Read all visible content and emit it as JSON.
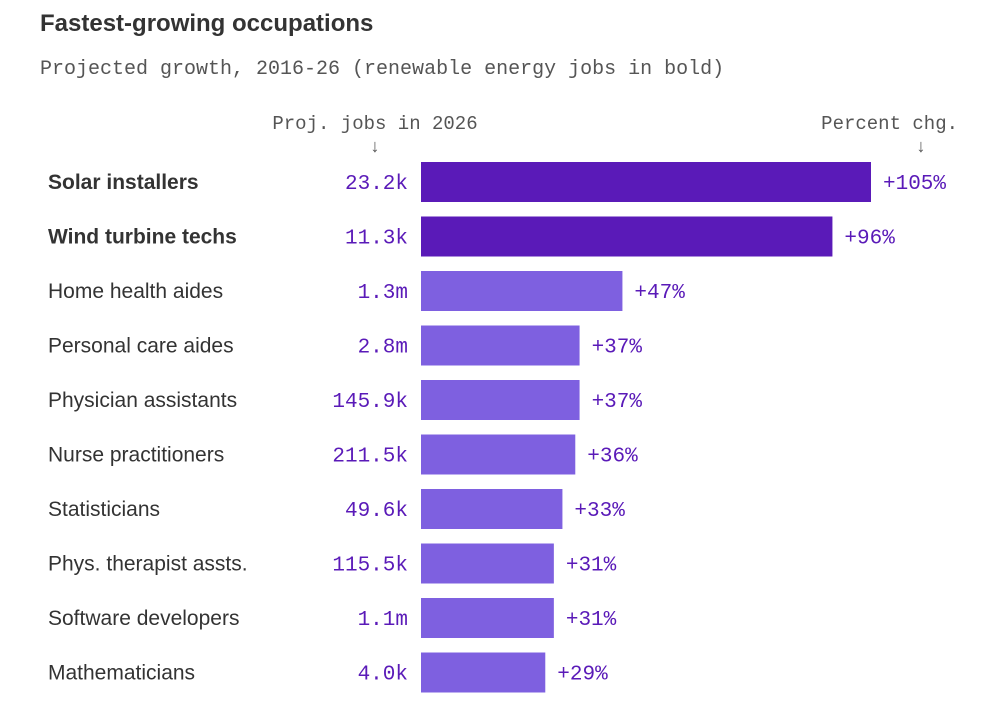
{
  "title": "Fastest-growing occupations",
  "subtitle": "Projected growth, 2016-26 (renewable energy jobs in bold)",
  "chart_data": {
    "type": "bar",
    "orientation": "horizontal",
    "title": "Fastest-growing occupations",
    "subtitle": "Projected growth, 2016-26 (renewable energy jobs in bold)",
    "column_headers": {
      "jobs": "Proj. jobs in 2026",
      "percent": "Percent chg."
    },
    "arrow_glyph": "↓",
    "categories": [
      "Solar installers",
      "Wind turbine techs",
      "Home health aides",
      "Personal care aides",
      "Physician assistants",
      "Nurse practitioners",
      "Statisticians",
      "Phys. therapist assts.",
      "Software developers",
      "Mathematicians"
    ],
    "jobs_labels": [
      "23.2k",
      "11.3k",
      "1.3m",
      "2.8m",
      "145.9k",
      "211.5k",
      "49.6k",
      "115.5k",
      "1.1m",
      "4.0k"
    ],
    "values": [
      105,
      96,
      47,
      37,
      37,
      36,
      33,
      31,
      31,
      29
    ],
    "value_labels": [
      "+105%",
      "+96%",
      "+47%",
      "+37%",
      "+37%",
      "+36%",
      "+33%",
      "+31%",
      "+31%",
      "+29%"
    ],
    "highlight": [
      true,
      true,
      false,
      false,
      false,
      false,
      false,
      false,
      false,
      false
    ],
    "xlim": [
      0,
      105
    ],
    "colors": {
      "highlight": "#5a1ab8",
      "normal": "#7e60e0",
      "label_text": "#5a1ab8",
      "category_text": "#333333",
      "header_text": "#555555"
    }
  }
}
